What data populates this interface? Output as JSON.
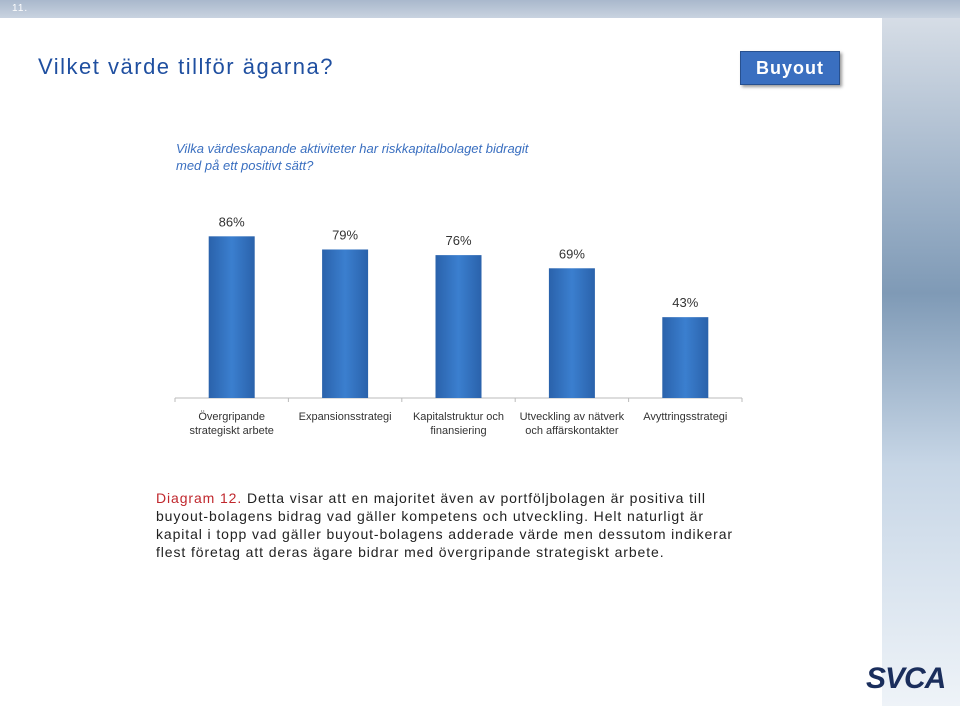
{
  "page_number": "11.",
  "header": {
    "title": "Vilket värde tillför ägarna?",
    "badge": "Buyout"
  },
  "chart_data": {
    "type": "bar",
    "subtitle": "Vilka värdeskapande aktiviteter har riskkapitalbolaget bidragit med på ett positivt sätt?",
    "categories": [
      "Övergripande strategiskt arbete",
      "Expansionsstrategi",
      "Kapitalstruktur och finansiering",
      "Utveckling av nätverk och affärskontakter",
      "Avyttringsstrategi"
    ],
    "values": [
      86,
      79,
      76,
      69,
      43
    ],
    "value_labels": [
      "86%",
      "79%",
      "76%",
      "69%",
      "43%"
    ],
    "color": "#2f6fbb",
    "ylim": [
      0,
      100
    ]
  },
  "caption": {
    "label": "Diagram 12.",
    "text": "Detta visar att en majoritet även av portföljbolagen är positiva till buyout-bolagens bidrag vad gäller kompetens och utveckling. Helt naturligt är kapital i topp vad gäller buyout-bolagens adderade värde men dessutom indikerar flest företag att deras ägare bidrar med övergripande strategiskt arbete."
  },
  "logo": "SVCA"
}
